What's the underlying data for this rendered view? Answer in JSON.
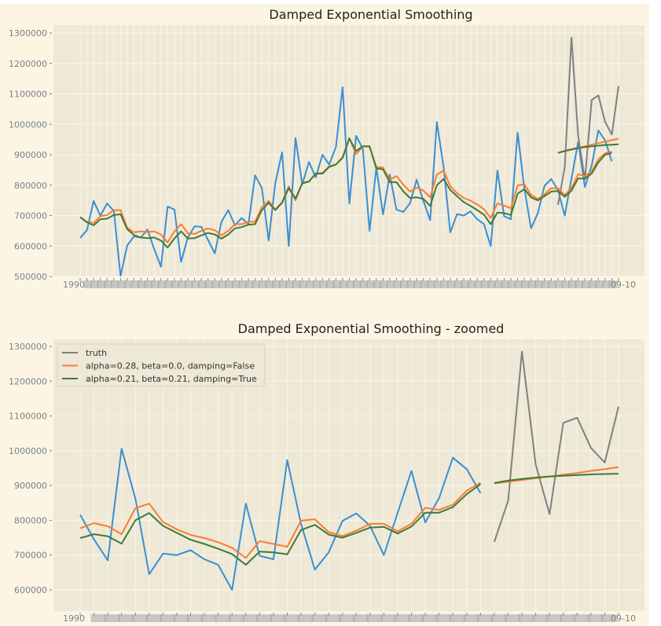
{
  "colors": {
    "figure_bg": "#fcf5e3",
    "axes_bg": "#eee8d6",
    "grid": "#fbf6ea",
    "truth": "#808080",
    "observed": "#3a8fd4",
    "model1": "#fc7c2e",
    "model2": "#3f7a3a"
  },
  "chart_data": [
    {
      "type": "line",
      "title": "Damped Exponential Smoothing",
      "xlabel": "",
      "ylabel": "",
      "ylim": [
        480000,
        1325000
      ],
      "yticks": [
        "500000",
        "600000",
        "700000",
        "800000",
        "900000",
        "1000000",
        "1100000",
        "1200000",
        "1300000"
      ],
      "ytick_values": [
        500000,
        600000,
        700000,
        800000,
        900000,
        1000000,
        1100000,
        1200000,
        1300000
      ],
      "n_points": 81,
      "xtick_label_first": "1990",
      "xtick_label_last": "09-10",
      "grid": true,
      "legend": null,
      "series": [
        {
          "name": "observed",
          "start": 0,
          "values": [
            627000,
            652000,
            748000,
            700000,
            740000,
            715000,
            502000,
            602000,
            632000,
            628000,
            654000,
            590000,
            532000,
            730000,
            720000,
            548000,
            628000,
            665000,
            663000,
            620000,
            576000,
            680000,
            718000,
            668000,
            692000,
            672000,
            832000,
            790000,
            618000,
            808000,
            908000,
            600000,
            955000,
            803000,
            876000,
            826000,
            900000,
            868000,
            925000,
            1122000,
            740000,
            962000,
            920000,
            650000,
            858000,
            704000,
            835000,
            720000,
            712000,
            740000,
            818000,
            748000,
            685000,
            1007000,
            860000,
            645000,
            705000,
            700000,
            714000,
            688000,
            672000,
            600000,
            848000,
            698000,
            688000,
            973000,
            790000,
            658000,
            708000,
            798000,
            820000,
            784000,
            700000,
            822000,
            942000,
            794000,
            864000,
            980000,
            947000,
            878000
          ]
        },
        {
          "name": "alpha=0.28, beta=0.0, damping=False",
          "start": 0,
          "values": [
            695000,
            680000,
            676000,
            698000,
            702000,
            718000,
            718000,
            660000,
            645000,
            648000,
            646000,
            648000,
            638000,
            612000,
            648000,
            672000,
            642000,
            640000,
            650000,
            658000,
            652000,
            635000,
            650000,
            672000,
            672000,
            680000,
            680000,
            728000,
            748000,
            720000,
            744000,
            796000,
            750000,
            808000,
            812000,
            838000,
            840000,
            862000,
            868000,
            892000,
            955000,
            902000,
            928000,
            926000,
            860000,
            858000,
            818000,
            830000,
            802000,
            779000,
            792000,
            782000,
            760000,
            835000,
            848000,
            797000,
            774000,
            758000,
            749000,
            737000,
            721000,
            692000,
            740000,
            733000,
            724000,
            799000,
            803000,
            768000,
            755000,
            770000,
            790000,
            790000,
            768000,
            790000,
            836000,
            830000,
            845000,
            885000,
            905000,
            910000
          ]
        },
        {
          "name": "alpha=0.21, beta=0.21, damping=True",
          "start": 0,
          "values": [
            695000,
            678000,
            668000,
            688000,
            690000,
            702000,
            704000,
            655000,
            636000,
            628000,
            626000,
            628000,
            618000,
            595000,
            625000,
            648000,
            625000,
            626000,
            635000,
            643000,
            638000,
            624000,
            638000,
            658000,
            662000,
            670000,
            672000,
            718000,
            742000,
            718000,
            742000,
            790000,
            756000,
            806000,
            812000,
            838000,
            838000,
            860000,
            868000,
            890000,
            953000,
            912000,
            928000,
            928000,
            855000,
            852000,
            810000,
            810000,
            780000,
            758000,
            760000,
            755000,
            732000,
            800000,
            820000,
            784000,
            764000,
            744000,
            732000,
            718000,
            703000,
            672000,
            710000,
            708000,
            702000,
            772000,
            787000,
            760000,
            750000,
            764000,
            779000,
            781000,
            762000,
            782000,
            822000,
            822000,
            838000,
            875000,
            900000,
            906000
          ]
        },
        {
          "name": "truth",
          "start": 71,
          "values": [
            735000,
            858000,
            1285000,
            962000,
            818000,
            1080000,
            1095000,
            1008000,
            966000,
            1125000
          ]
        },
        {
          "name": "forecast-model1",
          "start": 71,
          "values": [
            906000,
            913000,
            918000,
            923000,
            928000,
            933000,
            938000,
            943000,
            948000,
            953000
          ]
        },
        {
          "name": "forecast-model2",
          "start": 71,
          "values": [
            906000,
            912000,
            917000,
            922000,
            925000,
            928000,
            930000,
            932000,
            933000,
            934000
          ]
        }
      ]
    },
    {
      "type": "line",
      "title": "Damped Exponential Smoothing - zoomed",
      "xlabel": "",
      "ylabel": "",
      "ylim": [
        570000,
        1320000
      ],
      "yticks": [
        "600000",
        "700000",
        "800000",
        "900000",
        "1000000",
        "1100000",
        "1200000",
        "1300000"
      ],
      "ytick_values": [
        600000,
        700000,
        800000,
        900000,
        1000000,
        1100000,
        1200000,
        1300000
      ],
      "n_points": 40,
      "xtick_label_first": "1990",
      "xtick_label_last": "09-10",
      "grid": true,
      "legend": "top-left",
      "legend_entries": [
        {
          "label": "truth",
          "color_key": "truth"
        },
        {
          "label": "alpha=0.28, beta=0.0, damping=False",
          "color_key": "model1"
        },
        {
          "label": "alpha=0.21, beta=0.21, damping=True",
          "color_key": "model2"
        }
      ],
      "series": [
        {
          "name": "observed",
          "start": 0,
          "values": [
            816000,
            745000,
            685000,
            1006000,
            862000,
            645000,
            704000,
            700000,
            714000,
            688000,
            672000,
            600000,
            848000,
            698000,
            688000,
            973000,
            790000,
            658000,
            708000,
            798000,
            820000,
            784000,
            700000,
            822000,
            942000,
            794000,
            864000,
            980000,
            947000,
            878000
          ]
        },
        {
          "name": "alpha=0.28, beta=0.0, damping=False",
          "start": 0,
          "values": [
            777000,
            792000,
            783000,
            760000,
            835000,
            848000,
            795000,
            774000,
            758000,
            749000,
            737000,
            721000,
            692000,
            740000,
            732000,
            724000,
            799000,
            803000,
            766000,
            755000,
            770000,
            790000,
            790000,
            768000,
            790000,
            836000,
            830000,
            845000,
            885000,
            908000
          ]
        },
        {
          "name": "alpha=0.21, beta=0.21, damping=True",
          "start": 0,
          "values": [
            749000,
            760000,
            754000,
            733000,
            800000,
            821000,
            784000,
            764000,
            744000,
            732000,
            718000,
            703000,
            672000,
            710000,
            708000,
            702000,
            772000,
            787000,
            759000,
            750000,
            764000,
            779000,
            781000,
            762000,
            782000,
            822000,
            822000,
            838000,
            875000,
            904000
          ]
        },
        {
          "name": "truth",
          "start": 30,
          "values": [
            738000,
            856000,
            1285000,
            960000,
            818000,
            1080000,
            1095000,
            1008000,
            966000,
            1127000
          ]
        },
        {
          "name": "forecast-model1",
          "start": 30,
          "values": [
            906000,
            911000,
            916000,
            921000,
            926000,
            931000,
            936000,
            942000,
            947000,
            953000
          ]
        },
        {
          "name": "forecast-model2",
          "start": 30,
          "values": [
            907000,
            914000,
            919000,
            923000,
            926000,
            928000,
            930000,
            932000,
            933000,
            934000
          ]
        }
      ]
    }
  ]
}
